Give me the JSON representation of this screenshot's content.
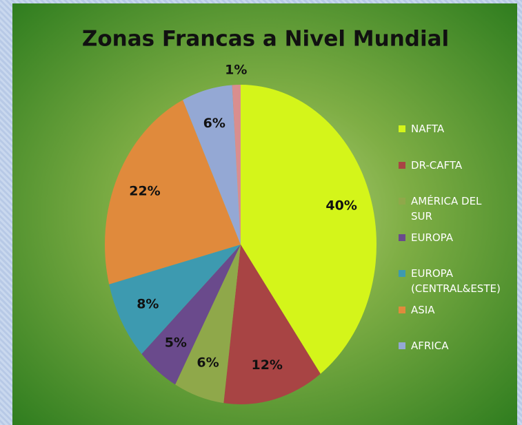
{
  "chart_data": {
    "type": "pie",
    "title": "Zonas Francas a Nivel Mundial",
    "categories": [
      "NAFTA",
      "DR-CAFTA",
      "AMÉRICA DEL SUR",
      "EUROPA",
      "EUROPA (CENTRAL&ESTE)",
      "ASIA",
      "AFRICA",
      null
    ],
    "values": [
      40,
      12,
      6,
      5,
      8,
      22,
      6,
      1
    ],
    "value_labels": [
      "40%",
      "12%",
      "6%",
      "5%",
      "8%",
      "22%",
      "6%",
      "1%"
    ],
    "colors": [
      "#d4f51a",
      "#a84444",
      "#8fa84a",
      "#6a4a8c",
      "#3d9ab0",
      "#e08a3c",
      "#94a8d4",
      "#d98e8e"
    ],
    "legend": "right"
  }
}
